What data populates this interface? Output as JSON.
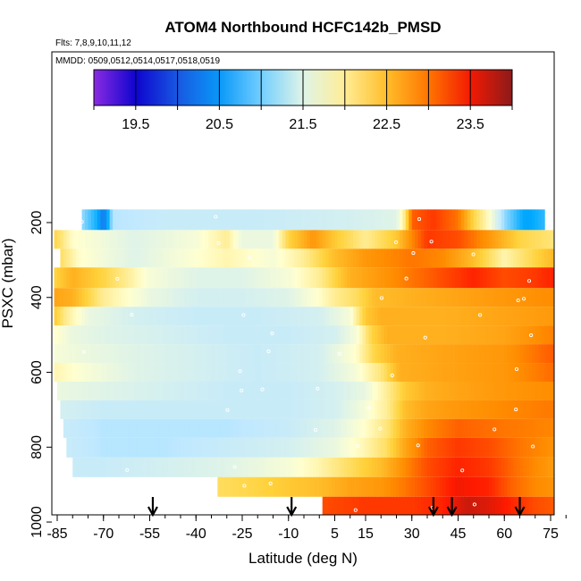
{
  "chart_data": {
    "type": "heatmap",
    "title": "ATOM4 Northbound HCFC142b_PMSD",
    "subtitle_flights": "Flts: 7,8,9,10,11,12",
    "subtitle_dates": "MMDD: 0509,0512,0514,0517,0518,0519",
    "xlabel": "Latitude (deg N)",
    "ylabel": "PSXC (mbar)",
    "xlim": [
      -87,
      83
    ],
    "ylim": [
      1010,
      0
    ],
    "x_ticks": [
      -85,
      -70,
      -55,
      -40,
      -25,
      -10,
      5,
      15,
      30,
      45,
      60,
      75
    ],
    "x_minor_ticks": [
      -85,
      -80,
      -75,
      -70,
      -65,
      -60,
      -55,
      -50,
      -45,
      -40,
      -35,
      -30,
      -25,
      -20,
      -15,
      -10,
      -5,
      0,
      5,
      10,
      15,
      20,
      25,
      30,
      35,
      40,
      45,
      50,
      55,
      60,
      65,
      70,
      75,
      80
    ],
    "y_ticks": [
      200,
      400,
      600,
      800,
      1000
    ],
    "grid": false,
    "colorbar": {
      "placement": "top",
      "range": [
        19,
        24
      ],
      "labels": [
        19.5,
        20.5,
        21.5,
        22.5,
        23.5
      ],
      "colors": [
        "#8a2be2",
        "#0000cc",
        "#1e6ee6",
        "#00aaff",
        "#bfe8ff",
        "#ffffd0",
        "#ffd23c",
        "#ff8c00",
        "#ff1a00",
        "#8b1a1a"
      ]
    },
    "profile_arrows": [
      -54,
      -9,
      37,
      43,
      65
    ],
    "layers": [
      {
        "p": 190,
        "x0": -77,
        "x1": 73,
        "pts": [
          [
            -77,
            21.1
          ],
          [
            -72,
            20.7
          ],
          [
            -70,
            20.2
          ],
          [
            -67,
            21.2
          ],
          [
            -50,
            21.3
          ],
          [
            -20,
            21.3
          ],
          [
            10,
            21.4
          ],
          [
            25,
            21.5
          ],
          [
            28,
            22.1
          ],
          [
            30,
            23.1
          ],
          [
            37,
            23.3
          ],
          [
            45,
            23.0
          ],
          [
            50,
            22.3
          ],
          [
            55,
            21.8
          ],
          [
            60,
            21.1
          ],
          [
            67,
            20.6
          ],
          [
            73,
            20.8
          ]
        ]
      },
      {
        "p": 250,
        "x0": -86,
        "x1": 76,
        "pts": [
          [
            -86,
            22.3
          ],
          [
            -80,
            21.8
          ],
          [
            -60,
            21.5
          ],
          [
            -40,
            21.7
          ],
          [
            -30,
            22.0
          ],
          [
            -25,
            21.6
          ],
          [
            -15,
            21.6
          ],
          [
            -10,
            22.3
          ],
          [
            -2,
            22.8
          ],
          [
            5,
            22.4
          ],
          [
            15,
            22.0
          ],
          [
            25,
            22.4
          ],
          [
            30,
            22.9
          ],
          [
            35,
            23.3
          ],
          [
            45,
            23.2
          ],
          [
            55,
            22.8
          ],
          [
            65,
            22.3
          ],
          [
            76,
            22.1
          ]
        ]
      },
      {
        "p": 290,
        "x0": -84,
        "x1": 80,
        "pts": [
          [
            -84,
            22.2
          ],
          [
            -78,
            21.8
          ],
          [
            -60,
            21.5
          ],
          [
            -45,
            21.7
          ],
          [
            -30,
            21.9
          ],
          [
            -15,
            21.7
          ],
          [
            -5,
            22.0
          ],
          [
            5,
            22.5
          ],
          [
            15,
            22.8
          ],
          [
            30,
            23.0
          ],
          [
            40,
            22.9
          ],
          [
            50,
            22.5
          ],
          [
            60,
            21.9
          ],
          [
            70,
            22.3
          ],
          [
            80,
            22.7
          ]
        ]
      },
      {
        "p": 350,
        "x0": -86,
        "x1": 81,
        "pts": [
          [
            -86,
            22.3
          ],
          [
            -80,
            22.6
          ],
          [
            -70,
            22.3
          ],
          [
            -55,
            21.7
          ],
          [
            -40,
            21.5
          ],
          [
            -25,
            21.5
          ],
          [
            -10,
            21.7
          ],
          [
            0,
            22.0
          ],
          [
            10,
            22.6
          ],
          [
            20,
            22.8
          ],
          [
            30,
            23.0
          ],
          [
            40,
            23.2
          ],
          [
            50,
            23.4
          ],
          [
            60,
            23.2
          ],
          [
            70,
            23.3
          ],
          [
            81,
            23.5
          ]
        ]
      },
      {
        "p": 400,
        "x0": -86,
        "x1": 79,
        "pts": [
          [
            -86,
            22.7
          ],
          [
            -80,
            22.6
          ],
          [
            -70,
            22.0
          ],
          [
            -55,
            21.6
          ],
          [
            -40,
            21.4
          ],
          [
            -25,
            21.4
          ],
          [
            -10,
            21.5
          ],
          [
            0,
            21.8
          ],
          [
            5,
            22.0
          ],
          [
            12,
            22.2
          ],
          [
            18,
            22.5
          ],
          [
            30,
            22.6
          ],
          [
            45,
            22.7
          ],
          [
            60,
            22.8
          ],
          [
            79,
            22.9
          ]
        ]
      },
      {
        "p": 450,
        "x0": -86,
        "x1": 79,
        "pts": [
          [
            -86,
            22.4
          ],
          [
            -82,
            22.0
          ],
          [
            -75,
            21.6
          ],
          [
            -60,
            21.4
          ],
          [
            -40,
            21.3
          ],
          [
            -20,
            21.3
          ],
          [
            0,
            21.4
          ],
          [
            10,
            21.7
          ],
          [
            15,
            22.4
          ],
          [
            20,
            22.6
          ],
          [
            40,
            22.6
          ],
          [
            60,
            22.7
          ],
          [
            79,
            22.8
          ]
        ]
      },
      {
        "p": 500,
        "x0": -86,
        "x1": 79,
        "pts": [
          [
            -86,
            21.8
          ],
          [
            -80,
            21.6
          ],
          [
            -70,
            21.5
          ],
          [
            -50,
            21.4
          ],
          [
            -30,
            21.3
          ],
          [
            -10,
            21.3
          ],
          [
            5,
            21.4
          ],
          [
            12,
            21.7
          ],
          [
            17,
            22.3
          ],
          [
            22,
            22.6
          ],
          [
            40,
            22.6
          ],
          [
            60,
            22.7
          ],
          [
            79,
            23.0
          ]
        ]
      },
      {
        "p": 550,
        "x0": -86,
        "x1": 79,
        "pts": [
          [
            -86,
            21.7
          ],
          [
            -75,
            21.6
          ],
          [
            -60,
            21.5
          ],
          [
            -40,
            21.4
          ],
          [
            -20,
            21.3
          ],
          [
            0,
            21.4
          ],
          [
            12,
            21.8
          ],
          [
            18,
            22.3
          ],
          [
            25,
            22.6
          ],
          [
            40,
            22.7
          ],
          [
            60,
            22.8
          ],
          [
            79,
            23.2
          ]
        ]
      },
      {
        "p": 600,
        "x0": -86,
        "x1": 79,
        "pts": [
          [
            -86,
            21.9
          ],
          [
            -75,
            21.7
          ],
          [
            -60,
            21.5
          ],
          [
            -40,
            21.4
          ],
          [
            -20,
            21.3
          ],
          [
            0,
            21.4
          ],
          [
            12,
            21.7
          ],
          [
            20,
            22.1
          ],
          [
            26,
            22.6
          ],
          [
            40,
            22.7
          ],
          [
            60,
            22.8
          ],
          [
            79,
            23.1
          ]
        ]
      },
      {
        "p": 650,
        "x0": -85,
        "x1": 79,
        "pts": [
          [
            -85,
            21.6
          ],
          [
            -70,
            21.5
          ],
          [
            -50,
            21.4
          ],
          [
            -30,
            21.3
          ],
          [
            -10,
            21.3
          ],
          [
            5,
            21.4
          ],
          [
            15,
            21.6
          ],
          [
            22,
            22.0
          ],
          [
            28,
            22.4
          ],
          [
            35,
            22.6
          ],
          [
            45,
            22.7
          ],
          [
            60,
            22.8
          ],
          [
            79,
            22.9
          ]
        ]
      },
      {
        "p": 700,
        "x0": -84,
        "x1": 79,
        "pts": [
          [
            -84,
            21.4
          ],
          [
            -70,
            21.3
          ],
          [
            -50,
            21.3
          ],
          [
            -30,
            21.3
          ],
          [
            -10,
            21.3
          ],
          [
            5,
            21.4
          ],
          [
            15,
            21.7
          ],
          [
            22,
            22.0
          ],
          [
            28,
            22.5
          ],
          [
            35,
            22.7
          ],
          [
            45,
            22.8
          ],
          [
            60,
            22.9
          ],
          [
            79,
            23.0
          ]
        ]
      },
      {
        "p": 750,
        "x0": -83,
        "x1": 79,
        "pts": [
          [
            -83,
            21.3
          ],
          [
            -70,
            21.2
          ],
          [
            -50,
            21.2
          ],
          [
            -30,
            21.2
          ],
          [
            -10,
            21.3
          ],
          [
            5,
            21.5
          ],
          [
            15,
            21.8
          ],
          [
            22,
            22.1
          ],
          [
            28,
            22.6
          ],
          [
            35,
            22.9
          ],
          [
            45,
            23.1
          ],
          [
            60,
            23.0
          ],
          [
            79,
            22.9
          ]
        ]
      },
      {
        "p": 800,
        "x0": -82,
        "x1": 79,
        "pts": [
          [
            -82,
            21.3
          ],
          [
            -70,
            21.2
          ],
          [
            -50,
            21.2
          ],
          [
            -30,
            21.3
          ],
          [
            -10,
            21.4
          ],
          [
            5,
            21.6
          ],
          [
            15,
            21.9
          ],
          [
            22,
            22.2
          ],
          [
            28,
            22.7
          ],
          [
            35,
            23.1
          ],
          [
            45,
            23.3
          ],
          [
            55,
            23.2
          ],
          [
            65,
            23.0
          ],
          [
            79,
            22.8
          ]
        ]
      },
      {
        "p": 855,
        "x0": -80,
        "x1": 79,
        "pts": [
          [
            -80,
            21.3
          ],
          [
            -70,
            21.3
          ],
          [
            -50,
            21.4
          ],
          [
            -30,
            21.5
          ],
          [
            -10,
            21.7
          ],
          [
            0,
            21.9
          ],
          [
            10,
            22.2
          ],
          [
            20,
            22.5
          ],
          [
            28,
            22.9
          ],
          [
            35,
            23.2
          ],
          [
            45,
            23.4
          ],
          [
            55,
            23.3
          ],
          [
            65,
            23.0
          ],
          [
            79,
            22.7
          ]
        ]
      },
      {
        "p": 905,
        "x0": -33,
        "x1": 79,
        "pts": [
          [
            -33,
            22.2
          ],
          [
            -20,
            22.3
          ],
          [
            -10,
            22.4
          ],
          [
            0,
            22.5
          ],
          [
            10,
            22.7
          ],
          [
            20,
            22.8
          ],
          [
            28,
            23.0
          ],
          [
            35,
            23.2
          ],
          [
            45,
            23.5
          ],
          [
            55,
            23.4
          ],
          [
            62,
            23.1
          ],
          [
            70,
            22.9
          ],
          [
            79,
            22.8
          ]
        ]
      },
      {
        "p": 960,
        "x0": 1,
        "x1": 79,
        "pts": [
          [
            1,
            23.2
          ],
          [
            15,
            23.3
          ],
          [
            30,
            23.3
          ],
          [
            40,
            23.4
          ],
          [
            48,
            23.7
          ],
          [
            55,
            23.6
          ],
          [
            62,
            23.4
          ],
          [
            70,
            23.2
          ],
          [
            79,
            23.1
          ]
        ]
      },
      {
        "p": 1000,
        "x0": 42,
        "x1": 79,
        "pts": [
          [
            42,
            23.6
          ],
          [
            50,
            23.3
          ],
          [
            58,
            22.9
          ],
          [
            66,
            22.6
          ],
          [
            72,
            22.7
          ],
          [
            79,
            22.8
          ]
        ]
      }
    ]
  }
}
